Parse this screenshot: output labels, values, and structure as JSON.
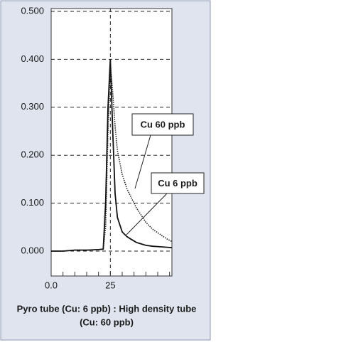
{
  "chart_data": {
    "type": "line",
    "x": [
      0,
      5,
      10,
      15,
      20,
      22,
      23,
      24,
      25,
      26,
      27,
      28,
      30,
      32,
      34,
      36,
      38,
      40,
      43,
      46,
      49,
      51
    ],
    "series": [
      {
        "name": "Cu 60 ppb",
        "color": "#222222",
        "dash": "dotted",
        "values": [
          0,
          0,
          0.002,
          0.002,
          0.003,
          0.004,
          0.05,
          0.25,
          0.39,
          0.33,
          0.26,
          0.21,
          0.16,
          0.13,
          0.11,
          0.09,
          0.075,
          0.06,
          0.045,
          0.035,
          0.025,
          0.02
        ]
      },
      {
        "name": "Cu 6 ppb",
        "color": "#111111",
        "dash": "solid",
        "values": [
          0,
          0,
          0.002,
          0.002,
          0.003,
          0.004,
          0.1,
          0.3,
          0.4,
          0.25,
          0.12,
          0.07,
          0.04,
          0.03,
          0.024,
          0.018,
          0.015,
          0.012,
          0.01,
          0.009,
          0.008,
          0.007
        ]
      }
    ],
    "xlim": [
      0,
      51
    ],
    "ylim": [
      -0.052,
      0.506
    ],
    "xticks": [
      {
        "value": 0,
        "label": "0.0"
      },
      25
    ],
    "xminor_ticks": [
      5,
      10,
      15,
      20,
      25,
      30,
      35,
      40,
      45,
      50
    ],
    "yticks": [
      {
        "value": 0,
        "label": "0.000"
      },
      {
        "value": 0.1,
        "label": "0.100"
      },
      {
        "value": 0.2,
        "label": "0.200"
      },
      {
        "value": 0.3,
        "label": "0.300"
      },
      {
        "value": 0.4,
        "label": "0.400"
      },
      {
        "value": 0.5,
        "label": "0.500"
      }
    ],
    "grid": true,
    "xgrid_at": [
      25
    ],
    "caption": [
      "Pyro tube (Cu: 6 ppb) : High density tube",
      "(Cu: 60 ppb)"
    ]
  }
}
